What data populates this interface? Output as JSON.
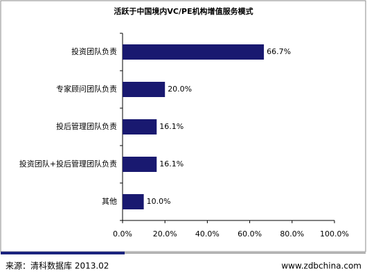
{
  "chart_data": {
    "type": "bar",
    "orientation": "horizontal",
    "title": "活跃于中国境内VC/PE机构增值服务模式",
    "categories": [
      "投资团队负责",
      "专家顾问团队负责",
      "投后管理团队负责",
      "投资团队+投后管理团队负责",
      "其他"
    ],
    "values": [
      66.7,
      20.0,
      16.1,
      16.1,
      10.0
    ],
    "value_labels": [
      "66.7%",
      "20.0%",
      "16.1%",
      "16.1%",
      "10.0%"
    ],
    "color": "#191970",
    "xlim": [
      0,
      100
    ],
    "xticks": [
      {
        "value": 0,
        "label": "0.0%"
      },
      {
        "value": 20,
        "label": "20.0%"
      },
      {
        "value": 40,
        "label": "40.0%"
      },
      {
        "value": 60,
        "label": "60.0%"
      },
      {
        "value": 80,
        "label": "80.0%"
      },
      {
        "value": 100,
        "label": "100.0%"
      }
    ],
    "source": "来源：清科数据库 2013.02",
    "website": "www.zdbchina.com"
  }
}
